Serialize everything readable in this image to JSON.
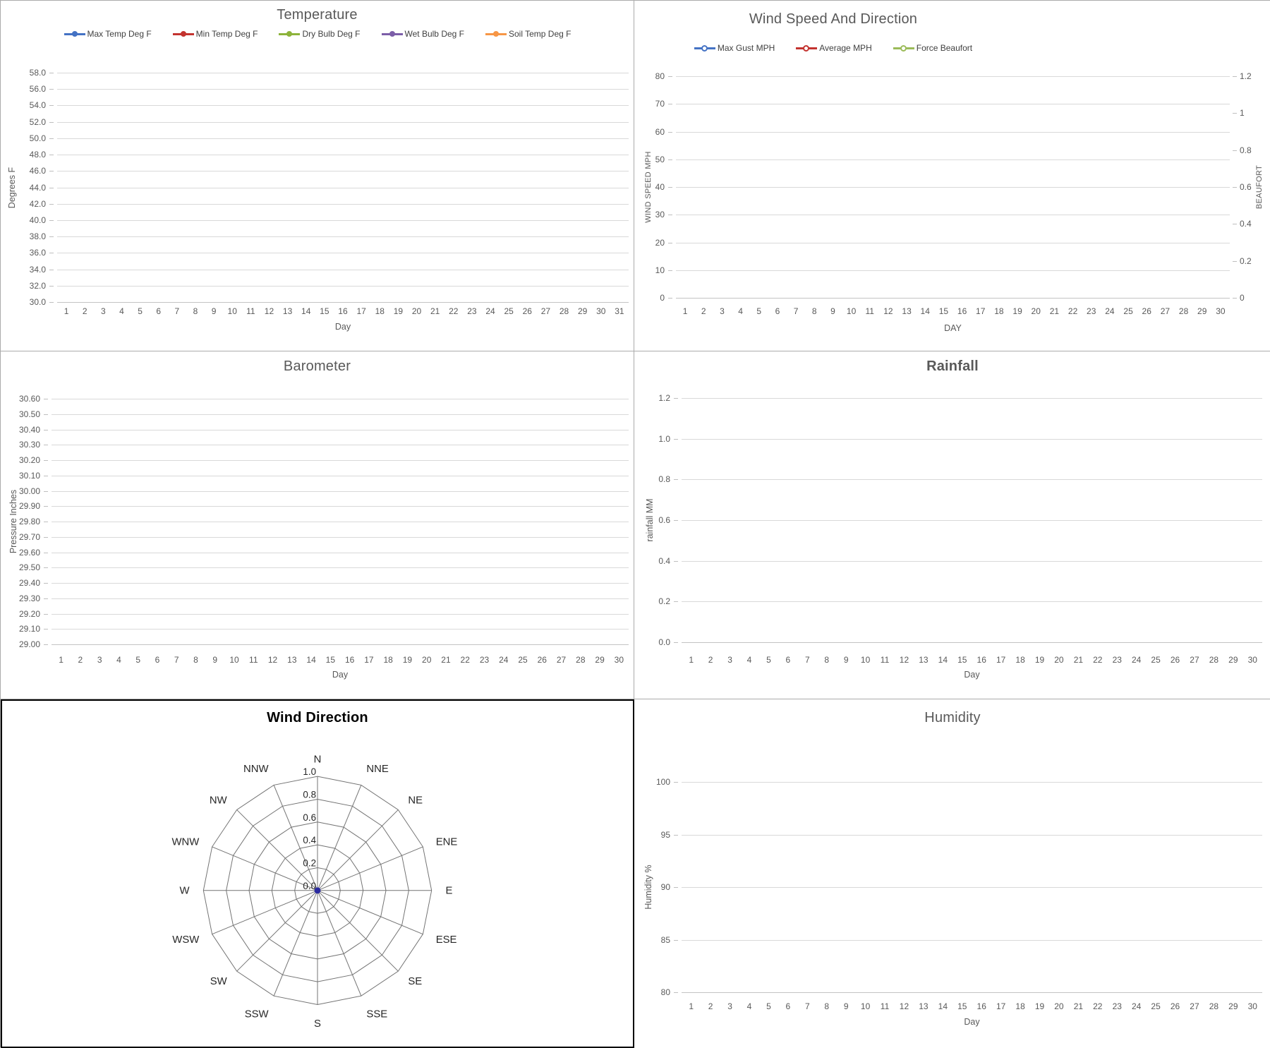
{
  "chart_data": [
    {
      "id": "temperature",
      "type": "line",
      "title": "Temperature",
      "legend_position": "top",
      "grid": true,
      "notes": "no data points plotted",
      "x": {
        "label": "Day",
        "ticks": [
          "1",
          "2",
          "3",
          "4",
          "5",
          "6",
          "7",
          "8",
          "9",
          "10",
          "11",
          "12",
          "13",
          "14",
          "15",
          "16",
          "17",
          "18",
          "19",
          "20",
          "21",
          "22",
          "23",
          "24",
          "25",
          "26",
          "27",
          "28",
          "29",
          "30",
          "31"
        ]
      },
      "y": {
        "label": "Degrees F",
        "min": 30.0,
        "max": 58.0,
        "step": 2.0,
        "ticks": [
          "58.0",
          "56.0",
          "54.0",
          "52.0",
          "50.0",
          "48.0",
          "46.0",
          "44.0",
          "42.0",
          "40.0",
          "38.0",
          "36.0",
          "34.0",
          "32.0",
          "30.0"
        ]
      },
      "series": [
        {
          "name": "Max Temp Deg F",
          "color": "#4472C4",
          "values": []
        },
        {
          "name": "Min Temp Deg F",
          "color": "#C3332F",
          "values": []
        },
        {
          "name": "Dry Bulb Deg F",
          "color": "#8DB33A",
          "values": []
        },
        {
          "name": "Wet Bulb Deg F",
          "color": "#7C5EA8",
          "values": []
        },
        {
          "name": "Soil Temp Deg F",
          "color": "#F79646",
          "values": []
        }
      ]
    },
    {
      "id": "wind-speed-and-direction",
      "type": "line",
      "title": "Wind Speed And Direction",
      "legend_position": "top",
      "marker_style": "open-circle",
      "grid": true,
      "notes": "no data points plotted",
      "x": {
        "label": "DAY",
        "ticks": [
          "1",
          "2",
          "3",
          "4",
          "5",
          "6",
          "7",
          "8",
          "9",
          "10",
          "11",
          "12",
          "13",
          "14",
          "15",
          "16",
          "17",
          "18",
          "19",
          "20",
          "21",
          "22",
          "23",
          "24",
          "25",
          "26",
          "27",
          "28",
          "29",
          "30"
        ]
      },
      "y": {
        "label": "WIND SPEED MPH",
        "min": 0,
        "max": 80,
        "step": 10,
        "ticks": [
          "80",
          "70",
          "60",
          "50",
          "40",
          "30",
          "20",
          "10",
          "0"
        ]
      },
      "y2": {
        "label": "BEAUFORT",
        "min": 0,
        "max": 1.2,
        "step": 0.2,
        "ticks": [
          "1.2",
          "1",
          "0.8",
          "0.6",
          "0.4",
          "0.2",
          "0"
        ]
      },
      "series": [
        {
          "name": "Max Gust MPH",
          "color": "#4472C4",
          "values": []
        },
        {
          "name": "Average MPH",
          "color": "#C3332F",
          "values": []
        },
        {
          "name": "Force Beaufort",
          "color": "#9BBB59",
          "values": []
        }
      ]
    },
    {
      "id": "barometer",
      "type": "line",
      "title": "Barometer",
      "grid": true,
      "notes": "no data points plotted, no legend shown",
      "x": {
        "label": "Day",
        "ticks": [
          "1",
          "2",
          "3",
          "4",
          "5",
          "6",
          "7",
          "8",
          "9",
          "10",
          "11",
          "12",
          "13",
          "14",
          "15",
          "16",
          "17",
          "18",
          "19",
          "20",
          "21",
          "22",
          "23",
          "24",
          "25",
          "26",
          "27",
          "28",
          "29",
          "30"
        ]
      },
      "y": {
        "label": "Pressure Inches",
        "min": 29.0,
        "max": 30.6,
        "step": 0.1,
        "ticks": [
          "30.60",
          "30.50",
          "30.40",
          "30.30",
          "30.20",
          "30.10",
          "30.00",
          "29.90",
          "29.80",
          "29.70",
          "29.60",
          "29.50",
          "29.40",
          "29.30",
          "29.20",
          "29.10",
          "29.00"
        ]
      },
      "series": []
    },
    {
      "id": "rainfall",
      "type": "line",
      "title": "Rainfall",
      "grid": true,
      "notes": "no data points plotted, no legend shown",
      "x": {
        "label": "Day",
        "ticks": [
          "1",
          "2",
          "3",
          "4",
          "5",
          "6",
          "7",
          "8",
          "9",
          "10",
          "11",
          "12",
          "13",
          "14",
          "15",
          "16",
          "17",
          "18",
          "19",
          "20",
          "21",
          "22",
          "23",
          "24",
          "25",
          "26",
          "27",
          "28",
          "29",
          "30"
        ]
      },
      "y": {
        "label": "rainfall MM",
        "min": 0.0,
        "max": 1.2,
        "step": 0.2,
        "ticks": [
          "1.2",
          "1.0",
          "0.8",
          "0.6",
          "0.4",
          "0.2",
          "0.0"
        ]
      },
      "series": []
    },
    {
      "id": "wind-direction",
      "type": "radar",
      "title": "Wind Direction",
      "categories": [
        "N",
        "NNE",
        "NE",
        "ENE",
        "E",
        "ESE",
        "SE",
        "SSE",
        "S",
        "SSW",
        "SW",
        "WSW",
        "W",
        "WNW",
        "NW",
        "NNW"
      ],
      "ring_ticks": [
        "0.0",
        "0.2",
        "0.4",
        "0.6",
        "0.8",
        "1.0"
      ],
      "rlim": [
        0,
        1
      ],
      "center_marker_color": "#2A2AA0",
      "values": []
    },
    {
      "id": "humidity",
      "type": "line",
      "title": "Humidity",
      "grid": true,
      "notes": "no data points plotted, no legend shown",
      "x": {
        "label": "Day",
        "ticks": [
          "1",
          "2",
          "3",
          "4",
          "5",
          "6",
          "7",
          "8",
          "9",
          "10",
          "11",
          "12",
          "13",
          "14",
          "15",
          "16",
          "17",
          "18",
          "19",
          "20",
          "21",
          "22",
          "23",
          "24",
          "25",
          "26",
          "27",
          "28",
          "29",
          "30"
        ]
      },
      "y": {
        "label": "Humidity %",
        "min": 80,
        "max": 100,
        "step": 5,
        "ticks": [
          "100",
          "95",
          "90",
          "85",
          "80"
        ]
      },
      "series": []
    }
  ]
}
